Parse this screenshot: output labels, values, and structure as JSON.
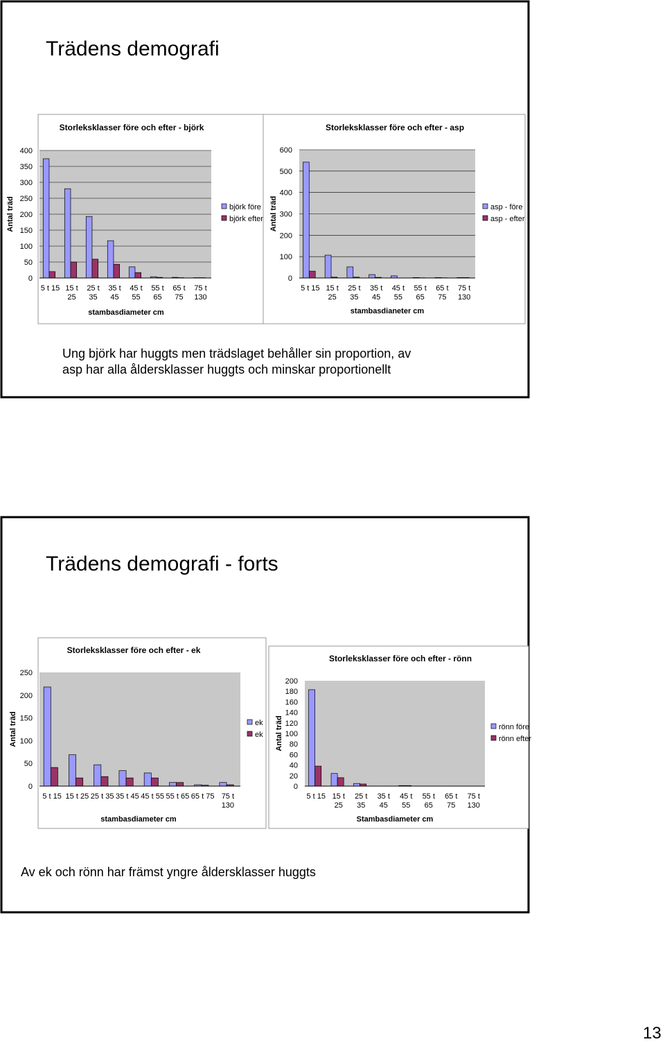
{
  "slides": [
    {
      "title": "Trädens demografi",
      "caption": [
        "Ung björk har huggts men trädslaget behåller sin proportion, av",
        "asp har alla åldersklasser huggts och minskar proportionellt"
      ]
    },
    {
      "title": "Trädens demografi - forts",
      "caption": [
        "Av ek och rönn har främst yngre åldersklasser huggts"
      ]
    }
  ],
  "page_number": "13",
  "chart_data": [
    {
      "type": "bar",
      "title": "Storleksklasser före och efter - björk",
      "xlabel": "stambasdiameter cm",
      "ylabel": "Antal träd",
      "categories": [
        "5 t 15",
        "15 t 25",
        "25 t 35",
        "35 t 45",
        "45 t 55",
        "55 t 65",
        "65 t 75",
        "75 t 130"
      ],
      "series": [
        {
          "name": "björk före",
          "color": "#9999ff",
          "values": [
            374,
            280,
            193,
            117,
            35,
            4,
            2,
            1
          ]
        },
        {
          "name": "björk efter",
          "color": "#993366",
          "values": [
            20,
            50,
            59,
            43,
            17,
            2,
            1,
            1
          ]
        }
      ],
      "ylim": [
        0,
        400
      ],
      "yticks": [
        0,
        50,
        100,
        150,
        200,
        250,
        300,
        350,
        400
      ],
      "grid": true
    },
    {
      "type": "bar",
      "title": "Storleksklasser före  och efter -  asp",
      "xlabel": "stambasdianeter cm",
      "ylabel": "Antal träd",
      "categories": [
        "5 t 15",
        "15 t 25",
        "25 t 35",
        "35 t 45",
        "45 t 55",
        "55 t 65",
        "65 t 75",
        "75 t 130"
      ],
      "series": [
        {
          "name": "asp - före",
          "color": "#9999ff",
          "values": [
            542,
            107,
            52,
            16,
            10,
            2,
            2,
            2
          ]
        },
        {
          "name": "asp - efter",
          "color": "#993366",
          "values": [
            32,
            4,
            4,
            3,
            0,
            1,
            1,
            2
          ]
        }
      ],
      "ylim": [
        0,
        600
      ],
      "yticks": [
        0,
        100,
        200,
        300,
        400,
        500,
        600
      ],
      "grid": true
    },
    {
      "type": "bar",
      "title": "Storleksklasser före och efter - ek",
      "xlabel": "stambasdiameter cm",
      "ylabel": "Antal träd",
      "categories": [
        "5 t 15",
        "15 t 25",
        "25 t 35",
        "35 t 45",
        "45 t 55",
        "55 t 65",
        "65 t 75",
        "75 t 130"
      ],
      "series": [
        {
          "name": "ek",
          "color": "#9999ff",
          "values": [
            218,
            69,
            47,
            34,
            29,
            8,
            3,
            8
          ]
        },
        {
          "name": "ek",
          "color": "#993366",
          "values": [
            41,
            18,
            21,
            18,
            18,
            8,
            2,
            3
          ]
        }
      ],
      "ylim": [
        0,
        250
      ],
      "yticks": [
        0,
        50,
        100,
        150,
        200,
        250
      ],
      "grid": false
    },
    {
      "type": "bar",
      "title": "Storleksklasser före och efter - rönn",
      "xlabel": "Stambasdiameter cm",
      "ylabel": "Antal träd",
      "categories": [
        "5 t 15",
        "15 t 25",
        "25 t 35",
        "35 t 45",
        "45 t 55",
        "55 t 65",
        "65 t 75",
        "75 t 130"
      ],
      "series": [
        {
          "name": "rönn före",
          "color": "#9999ff",
          "values": [
            183,
            24,
            5,
            0,
            1,
            0,
            0,
            0
          ]
        },
        {
          "name": "rönn efter",
          "color": "#993366",
          "values": [
            38,
            16,
            4,
            0,
            1,
            0,
            0,
            0
          ]
        }
      ],
      "ylim": [
        0,
        200
      ],
      "yticks": [
        0,
        20,
        40,
        60,
        80,
        100,
        120,
        140,
        160,
        180,
        200
      ],
      "grid": false
    }
  ]
}
